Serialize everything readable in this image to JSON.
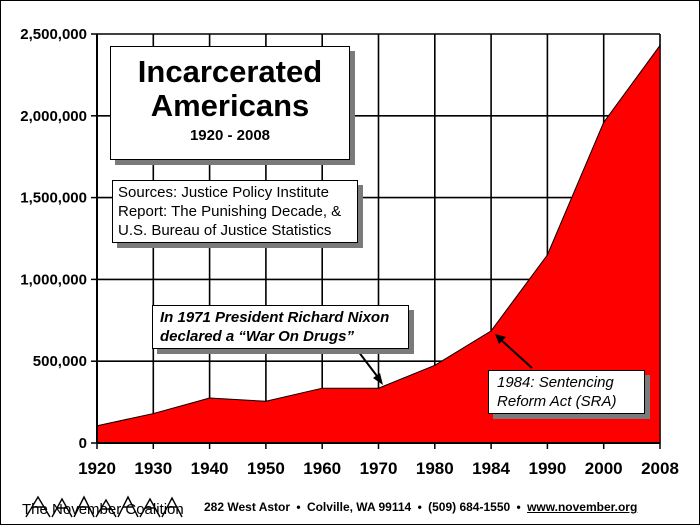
{
  "chart_data": {
    "type": "area",
    "title": "Incarcerated Americans",
    "subtitle": "1920 - 2008",
    "categories": [
      "1920",
      "1930",
      "1940",
      "1950",
      "1960",
      "1970",
      "1980",
      "1984",
      "1990",
      "2000",
      "2008"
    ],
    "series": [
      {
        "name": "Incarcerated Americans",
        "values": [
          105000,
          180000,
          275000,
          255000,
          335000,
          335000,
          475000,
          685000,
          1150000,
          1960000,
          2430000
        ],
        "color": "#ff0000"
      }
    ],
    "ylim": [
      0,
      2500000
    ],
    "yticks": [
      0,
      500000,
      1000000,
      1500000,
      2000000,
      2500000
    ],
    "ytick_labels": [
      "0",
      "500,000",
      "1,000,000",
      "1,500,000",
      "2,000,000",
      "2,500,000"
    ],
    "grid": true,
    "xlabel": "",
    "ylabel": ""
  },
  "annotations": {
    "sources": [
      "Sources: Justice Policy Institute",
      "Report: The Punishing Decade, &",
      "U.S. Bureau of Justice Statistics"
    ],
    "nixon": [
      "In 1971 President Richard Nixon",
      "declared a “War On Drugs”"
    ],
    "sra": [
      "1984: Sentencing",
      "Reform Act (SRA)"
    ]
  },
  "footer": {
    "logo_text": "The November Coalition",
    "street": "282 West Astor",
    "city": "Colville, WA 99114",
    "phone": "(509) 684-1550",
    "url": "www.november.org",
    "separator": "•"
  }
}
